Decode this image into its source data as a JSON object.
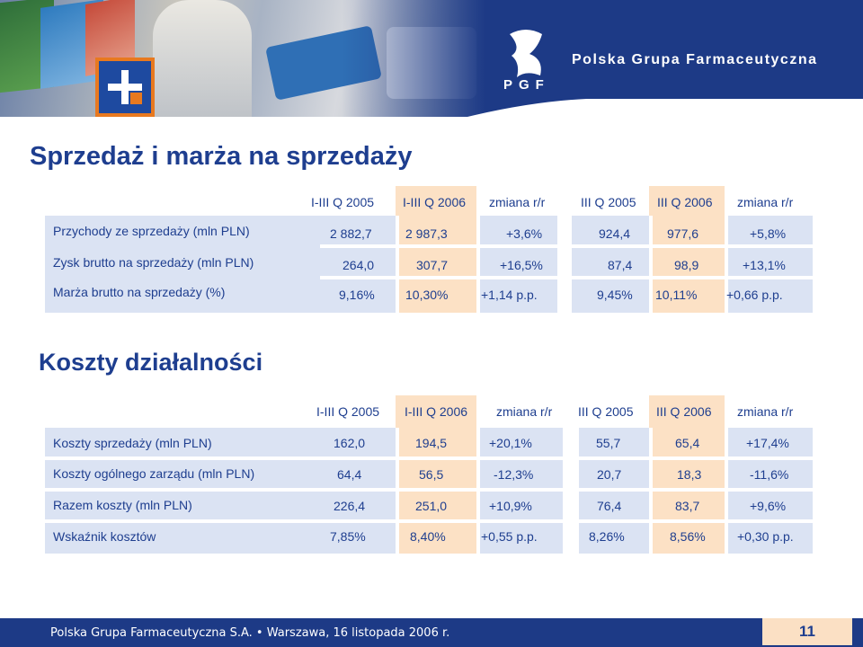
{
  "header": {
    "brand": "Polska Grupa Farmaceutyczna",
    "logo_text": "PGF"
  },
  "sales_section": {
    "title": "Sprzedaż i marża na sprzedaży",
    "columns": [
      "I-III Q 2005",
      "I-III Q 2006",
      "zmiana r/r",
      "III Q 2005",
      "III Q 2006",
      "zmiana r/r"
    ],
    "rows": [
      {
        "label": "Przychody ze sprzedaży (mln PLN)",
        "values": [
          "2 882,7",
          "2 987,3",
          "+3,6%",
          "924,4",
          "977,6",
          "+5,8%"
        ]
      },
      {
        "label": "Zysk brutto na sprzedaży (mln PLN)",
        "values": [
          "264,0",
          "307,7",
          "+16,5%",
          "87,4",
          "98,9",
          "+13,1%"
        ]
      },
      {
        "label": "Marża brutto na sprzedaży (%)",
        "values": [
          "9,16%",
          "10,30%",
          "+1,14 p.p.",
          "9,45%",
          "10,11%",
          "+0,66 p.p."
        ]
      }
    ]
  },
  "costs_section": {
    "title": "Koszty działalności",
    "columns": [
      "I-III Q 2005",
      "I-III Q 2006",
      "zmiana r/r",
      "III Q 2005",
      "III Q 2006",
      "zmiana r/r"
    ],
    "rows": [
      {
        "label": "Koszty sprzedaży (mln PLN)",
        "values": [
          "162,0",
          "194,5",
          "+20,1%",
          "55,7",
          "65,4",
          "+17,4%"
        ]
      },
      {
        "label": "Koszty ogólnego zarządu (mln PLN)",
        "values": [
          "64,4",
          "56,5",
          "-12,3%",
          "20,7",
          "18,3",
          "-11,6%"
        ]
      },
      {
        "label": "Razem koszty (mln PLN)",
        "values": [
          "226,4",
          "251,0",
          "+10,9%",
          "76,4",
          "83,7",
          "+9,6%"
        ]
      },
      {
        "label": "Wskaźnik kosztów",
        "values": [
          "7,85%",
          "8,40%",
          "+0,55 p.p.",
          "8,26%",
          "8,56%",
          "+0,30 p.p."
        ]
      }
    ]
  },
  "footer": {
    "text": "Polska Grupa Farmaceutyczna S.A. • Warszawa, 16 listopada 2006 r.",
    "page": "11"
  },
  "colors": {
    "navy": "#1d3a86",
    "text_blue": "#1e3e8f",
    "light_blue": "#dbe3f3",
    "peach": "#fce1c5",
    "orange": "#e8791f"
  }
}
